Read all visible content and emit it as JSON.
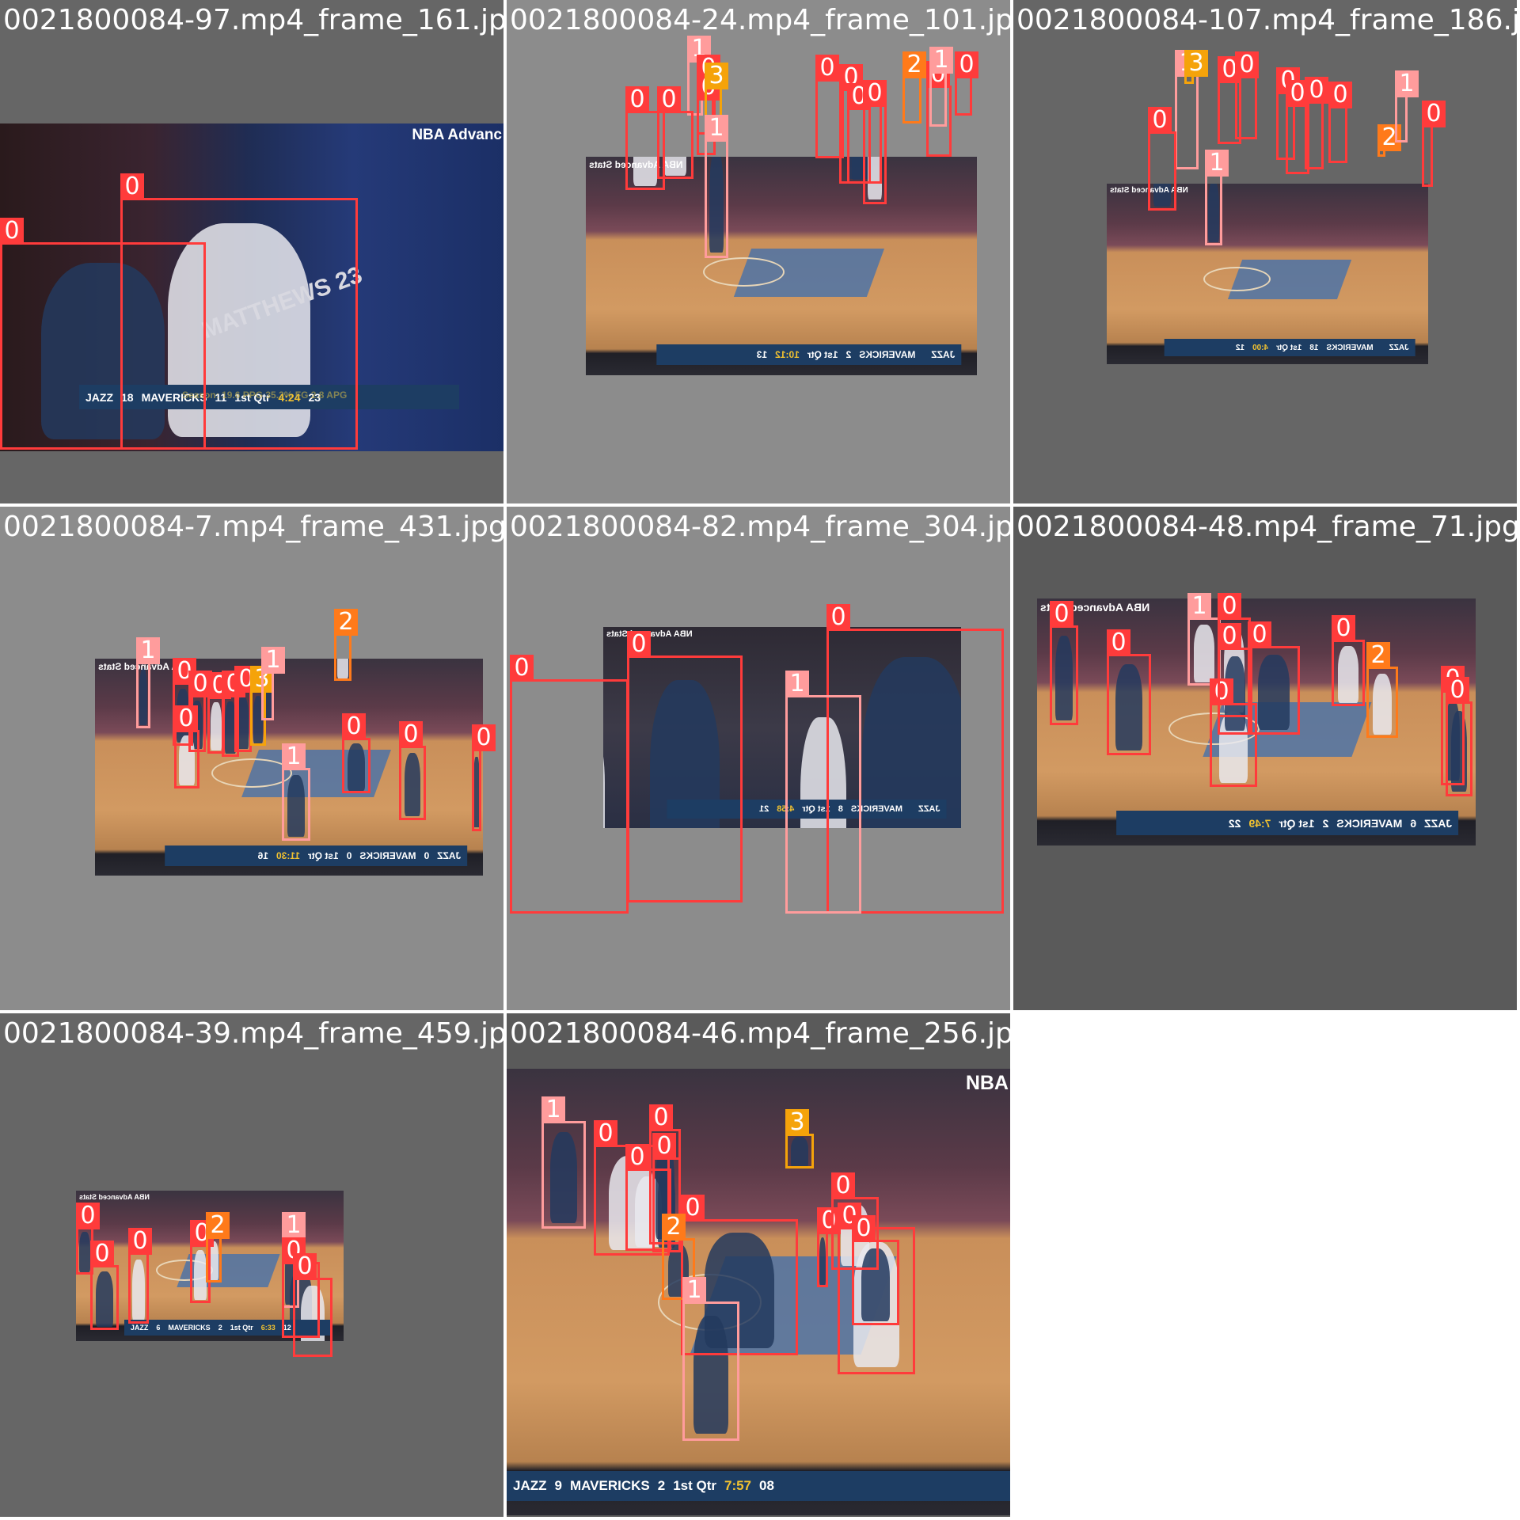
{
  "tiles": [
    {
      "filename": "0021800084-97.mp4_frame_161.jpg",
      "bg": "#666666",
      "scoreboard": {
        "team1": "JAZZ",
        "score1": "18",
        "team2": "MAVERICKS",
        "score2": "11",
        "quarter": "1st Qtr",
        "clock": "4:24",
        "shot": "23"
      },
      "watermark": "NBA Advanc",
      "stat_line": "Season: 19.6 PPG 35.3% FG 2.8 APG",
      "jersey": "MATTHEWS 23",
      "boxes": [
        {
          "cls": "0"
        },
        {
          "cls": "0"
        }
      ]
    },
    {
      "filename": "0021800084-24.mp4_frame_101.jpg",
      "bg": "#8c8c8c",
      "scoreboard": {
        "team1": "JAZZ",
        "score1": "",
        "team2": "MAVERICKS",
        "score2": "2",
        "quarter": "1st Qtr",
        "clock": "10:12",
        "shot": "13"
      },
      "watermark": "NBA Advanced Stats",
      "boxes": [
        {
          "cls": "1"
        },
        {
          "cls": "0"
        },
        {
          "cls": "0"
        },
        {
          "cls": "3"
        },
        {
          "cls": "0"
        },
        {
          "cls": "0"
        },
        {
          "cls": "1"
        },
        {
          "cls": "0"
        },
        {
          "cls": "0"
        },
        {
          "cls": "0"
        },
        {
          "cls": "0"
        },
        {
          "cls": "2"
        },
        {
          "cls": "0"
        },
        {
          "cls": "1"
        },
        {
          "cls": "0"
        }
      ]
    },
    {
      "filename": "0021800084-107.mp4_frame_186.jpg",
      "bg": "#666666",
      "scoreboard": {
        "team1": "JAZZ",
        "score1": "",
        "team2": "MAVERICKS",
        "score2": "18",
        "quarter": "1st Qtr",
        "clock": "4:00",
        "shot": "12"
      },
      "watermark": "NBA Advanced Stats",
      "boxes": [
        {
          "cls": "1"
        },
        {
          "cls": "3"
        },
        {
          "cls": "0"
        },
        {
          "cls": "0"
        },
        {
          "cls": "0"
        },
        {
          "cls": "0"
        },
        {
          "cls": "0"
        },
        {
          "cls": "0"
        },
        {
          "cls": "1"
        },
        {
          "cls": "0"
        },
        {
          "cls": "2"
        },
        {
          "cls": "1"
        },
        {
          "cls": "0"
        }
      ]
    },
    {
      "filename": "0021800084-7.mp4_frame_431.jpg",
      "bg": "#8c8c8c",
      "scoreboard": {
        "team1": "JAZZ",
        "score1": "0",
        "team2": "MAVERICKS",
        "score2": "0",
        "quarter": "1st Qtr",
        "clock": "11:30",
        "shot": "16"
      },
      "watermark": "NBA Advanced Stats",
      "boxes": [
        {
          "cls": "1"
        },
        {
          "cls": "0"
        },
        {
          "cls": "0"
        },
        {
          "cls": "0"
        },
        {
          "cls": "0"
        },
        {
          "cls": "0"
        },
        {
          "cls": "3"
        },
        {
          "cls": "1"
        },
        {
          "cls": "2"
        },
        {
          "cls": "0"
        },
        {
          "cls": "0"
        },
        {
          "cls": "1"
        },
        {
          "cls": "0"
        },
        {
          "cls": "0"
        }
      ]
    },
    {
      "filename": "0021800084-82.mp4_frame_304.jpg",
      "bg": "#8c8c8c",
      "scoreboard": {
        "team1": "JAZZ",
        "score1": "",
        "team2": "MAVERICKS",
        "score2": "8",
        "quarter": "1st Qtr",
        "clock": "4:58",
        "shot": "21"
      },
      "watermark": "NBA Advanced Stats",
      "boxes": [
        {
          "cls": "0"
        },
        {
          "cls": "0"
        },
        {
          "cls": "0"
        },
        {
          "cls": "1"
        }
      ]
    },
    {
      "filename": "0021800084-48.mp4_frame_71.jpg",
      "bg": "#5a5a5a",
      "scoreboard": {
        "team1": "JAZZ",
        "score1": "6",
        "team2": "MAVERICKS",
        "score2": "2",
        "quarter": "1st Qtr",
        "clock": "7:49",
        "shot": "22"
      },
      "watermark": "NBA Advanced Stats",
      "boxes": [
        {
          "cls": "0"
        },
        {
          "cls": "0"
        },
        {
          "cls": "1"
        },
        {
          "cls": "0"
        },
        {
          "cls": "0"
        },
        {
          "cls": "0"
        },
        {
          "cls": "0"
        },
        {
          "cls": "0"
        },
        {
          "cls": "2"
        },
        {
          "cls": "0"
        },
        {
          "cls": "0"
        }
      ]
    },
    {
      "filename": "0021800084-39.mp4_frame_459.jpg",
      "bg": "#666666",
      "scoreboard": {
        "team1": "JAZZ",
        "score1": "6",
        "team2": "MAVERICKS",
        "score2": "2",
        "quarter": "1st Qtr",
        "clock": "6:33",
        "shot": "12"
      },
      "watermark": "NBA Advanced Stats",
      "boxes": [
        {
          "cls": "0"
        },
        {
          "cls": "0"
        },
        {
          "cls": "0"
        },
        {
          "cls": "0"
        },
        {
          "cls": "2"
        },
        {
          "cls": "1"
        },
        {
          "cls": "0"
        },
        {
          "cls": "0"
        }
      ]
    },
    {
      "filename": "0021800084-46.mp4_frame_256.jpg",
      "bg": "#5a5a5a",
      "scoreboard": {
        "team1": "JAZZ",
        "score1": "9",
        "team2": "MAVERICKS",
        "score2": "2",
        "quarter": "1st Qtr",
        "clock": "7:57",
        "shot": "08"
      },
      "watermark": "NBA",
      "boxes": [
        {
          "cls": "1"
        },
        {
          "cls": "0"
        },
        {
          "cls": "0"
        },
        {
          "cls": "0"
        },
        {
          "cls": "0"
        },
        {
          "cls": "3"
        },
        {
          "cls": "0"
        },
        {
          "cls": "0"
        },
        {
          "cls": "0"
        },
        {
          "cls": "0"
        },
        {
          "cls": "2"
        },
        {
          "cls": "0"
        },
        {
          "cls": "1"
        }
      ]
    }
  ],
  "colors": {
    "class0": "#ff3b3b",
    "class1": "#ff9c9c",
    "class2": "#ff7a1a",
    "class3": "#f5a30a",
    "court": "#c98f5a",
    "paint": "#3c6fb0",
    "crowd": "#3a3340"
  }
}
